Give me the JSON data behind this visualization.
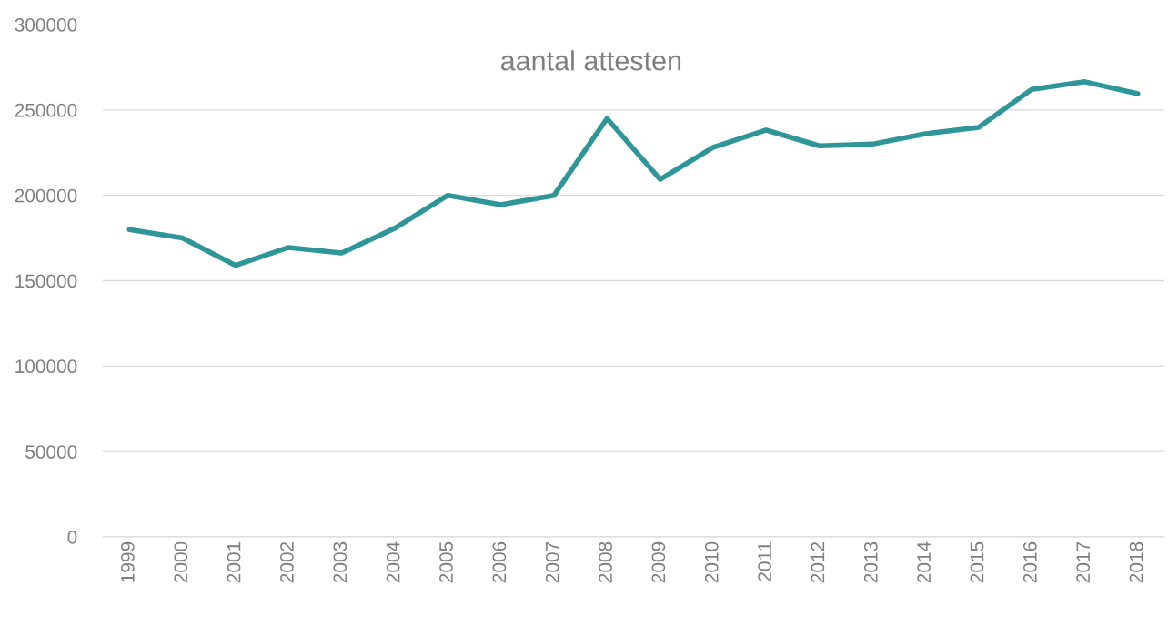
{
  "chart_data": {
    "type": "line",
    "title": "aantal attesten",
    "categories": [
      "1999",
      "2000",
      "2001",
      "2002",
      "2003",
      "2004",
      "2005",
      "2006",
      "2007",
      "2008",
      "2009",
      "2010",
      "2011",
      "2012",
      "2013",
      "2014",
      "2015",
      "2016",
      "2017",
      "2018"
    ],
    "series": [
      {
        "color": "#2e9598",
        "values": [
          180000,
          175000,
          159000,
          169500,
          166300,
          180700,
          200000,
          194500,
          200000,
          245000,
          209400,
          228100,
          238200,
          229000,
          230000,
          236100,
          239800,
          262000,
          266500,
          259500
        ]
      }
    ],
    "ylim": [
      0,
      300000
    ],
    "yticks": [
      0,
      50000,
      100000,
      150000,
      200000,
      250000,
      300000
    ],
    "grid": "y",
    "legend": false,
    "marker": "none",
    "line_style": "solid"
  }
}
